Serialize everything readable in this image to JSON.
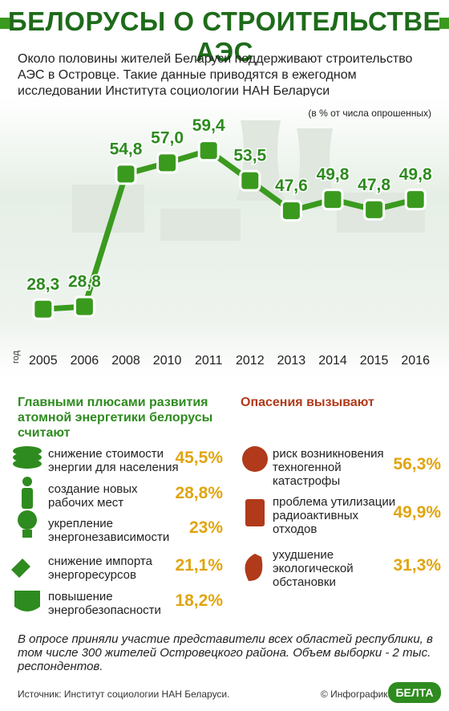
{
  "header": {
    "title": "БЕЛОРУСЫ О СТРОИТЕЛЬСТВЕ АЭС"
  },
  "intro": "Около половины жителей Беларуси поддерживают строительство АЭС в Островце. Такие данные приводятся в ежегодном исследовании Института социологии НАН Беларуси",
  "chart_data": {
    "type": "line",
    "subtitle": "(в % от числа опрошенных)",
    "x_label": "год",
    "categories": [
      "2005",
      "2006",
      "2008",
      "2010",
      "2011",
      "2012",
      "2013",
      "2014",
      "2015",
      "2016"
    ],
    "values": [
      28.3,
      28.8,
      54.8,
      57.0,
      59.4,
      53.5,
      47.6,
      49.8,
      47.8,
      49.8
    ],
    "value_labels": [
      "28,3",
      "28,8",
      "54,8",
      "57,0",
      "59,4",
      "53,5",
      "47,6",
      "49,8",
      "47,8",
      "49,8"
    ],
    "color": "#3a9a1e",
    "ylim": [
      20,
      65
    ]
  },
  "pros": {
    "title": "Главными плюсами развития атомной энергетики белорусы считают",
    "items": [
      {
        "label": "снижение стоимости\nэнергии для населения",
        "value": "45,5%"
      },
      {
        "label": "создание новых\nрабочих мест",
        "value": "28,8%"
      },
      {
        "label": "укрепление\nэнергонезависимости",
        "value": "23%"
      },
      {
        "label": "снижение импорта\nэнергоресурсов",
        "value": "21,1%"
      },
      {
        "label": "повышение\nэнергобезопасности",
        "value": "18,2%"
      }
    ]
  },
  "concerns": {
    "title": "Опасения вызывают",
    "items": [
      {
        "label": "риск возникновения\nтехногенной\nкатастрофы",
        "value": "56,3%"
      },
      {
        "label": "проблема утилизации\nрадиоактивных\nотходов",
        "value": "49,9%"
      },
      {
        "label": "ухудшение\nэкологической\nобстановки",
        "value": "31,3%"
      }
    ]
  },
  "footnote": "В опросе приняли участие представители всех областей республики, в том числе 300 жителей Островецкого района. Объем выборки - 2 тыс. респондентов.",
  "source": "Источник: Институт социологии НАН Беларуси.",
  "credit": "© Инфографика",
  "logo": "БЕЛТА"
}
